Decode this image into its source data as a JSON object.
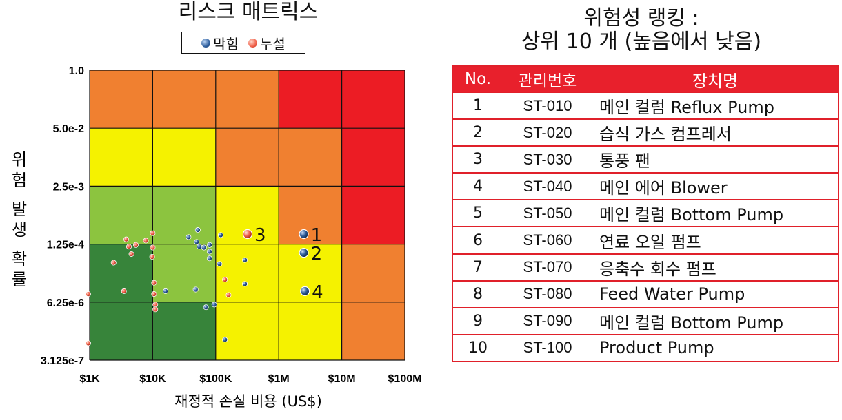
{
  "chart_data": {
    "type": "scatter",
    "title": "리스크 매트릭스",
    "xlabel": "재정적 손실 비용 (US$)",
    "ylabel": "위험 발생 확률",
    "x_scale": "log",
    "y_scale": "log",
    "xlim": [
      1000,
      100000000
    ],
    "ylim": [
      3.125e-07,
      1.0
    ],
    "x_ticks": [
      1000,
      10000,
      100000,
      1000000,
      10000000,
      100000000
    ],
    "x_tick_labels": [
      "$1K",
      "$10K",
      "$100K",
      "$1M",
      "$10M",
      "$100M"
    ],
    "y_ticks": [
      3.125e-07,
      6.25e-06,
      0.000125,
      0.0025,
      0.05,
      1.0
    ],
    "y_tick_labels": [
      "3.125e-7",
      "6.25e-6",
      "1.25e-4",
      "2.5e-3",
      "5.0e-2",
      "1.0"
    ],
    "grid": true,
    "legend_position": "top-center",
    "legend": [
      {
        "name": "막힘",
        "color": "#2f5f9e"
      },
      {
        "name": "누설",
        "color": "#f0604a"
      }
    ],
    "zone_colors": {
      "dark_green": "#37843a",
      "green": "#8cc43f",
      "yellow": "#f5f200",
      "orange": "#f08030",
      "red": "#ec1c24"
    },
    "zones": [
      [
        "orange",
        "orange",
        "orange",
        "red",
        "red"
      ],
      [
        "yellow",
        "yellow",
        "orange",
        "orange",
        "red"
      ],
      [
        "green",
        "green",
        "yellow",
        "orange",
        "red"
      ],
      [
        "dark_green",
        "green",
        "yellow",
        "yellow",
        "orange"
      ],
      [
        "dark_green",
        "dark_green",
        "yellow",
        "yellow",
        "orange"
      ]
    ],
    "series": [
      {
        "name": "막힘",
        "color": "#2f5f9e",
        "points": [
          {
            "x": 52000,
            "y": 0.00026
          },
          {
            "x": 37000,
            "y": 0.00018
          },
          {
            "x": 120000,
            "y": 0.0002
          },
          {
            "x": 50000,
            "y": 0.00014
          },
          {
            "x": 55000,
            "y": 0.00011
          },
          {
            "x": 65000,
            "y": 0.000105
          },
          {
            "x": 80000,
            "y": 0.00012
          },
          {
            "x": 80000,
            "y": 8.5e-05
          },
          {
            "x": 80000,
            "y": 6e-05
          },
          {
            "x": 115000,
            "y": 4.5e-05
          },
          {
            "x": 290000,
            "y": 5.5e-05
          },
          {
            "x": 290000,
            "y": 1.6e-05
          },
          {
            "x": 48000,
            "y": 1.2e-05
          },
          {
            "x": 16000,
            "y": 1.1e-05
          },
          {
            "x": 95000,
            "y": 5.5e-06
          },
          {
            "x": 70000,
            "y": 4.8e-06
          },
          {
            "x": 140000,
            "y": 9e-07
          },
          {
            "x": 2500000,
            "y": 0.00021,
            "label": "1"
          },
          {
            "x": 2500000,
            "y": 8e-05,
            "label": "2"
          },
          {
            "x": 2600000,
            "y": 1.1e-05,
            "label": "4"
          }
        ]
      },
      {
        "name": "누설",
        "color": "#f0604a",
        "points": [
          {
            "x": 10000,
            "y": 0.00022
          },
          {
            "x": 3800,
            "y": 0.00016
          },
          {
            "x": 4200,
            "y": 0.00011
          },
          {
            "x": 5400,
            "y": 0.00012
          },
          {
            "x": 7800,
            "y": 0.00015
          },
          {
            "x": 10000,
            "y": 0.000105
          },
          {
            "x": 2400,
            "y": 4.8e-05
          },
          {
            "x": 4600,
            "y": 7.5e-05
          },
          {
            "x": 9800,
            "y": 6.5e-05
          },
          {
            "x": 10500,
            "y": 1.7e-05
          },
          {
            "x": 3500,
            "y": 1.1e-05
          },
          {
            "x": 10500,
            "y": 9.5e-06
          },
          {
            "x": 11000,
            "y": 5.5e-06
          },
          {
            "x": 11000,
            "y": 4.3e-06
          },
          {
            "x": 950,
            "y": 9.5e-06
          },
          {
            "x": 950,
            "y": 7.5e-07
          },
          {
            "x": 140000,
            "y": 2e-05
          },
          {
            "x": 160000,
            "y": 9e-06
          },
          {
            "x": 320000,
            "y": 0.00021,
            "label": "3"
          }
        ]
      }
    ]
  },
  "ranking": {
    "title_line1": "위험성 랭킹 :",
    "title_line2": "상위 10 개 (높음에서 낮음)",
    "headers": {
      "no": "No.",
      "id": "관리번호",
      "name": "장치명"
    },
    "rows": [
      {
        "no": "1",
        "id": "ST-010",
        "name": "메인 컬럼 Reflux Pump"
      },
      {
        "no": "2",
        "id": "ST-020",
        "name": "습식 가스 컴프레서"
      },
      {
        "no": "3",
        "id": "ST-030",
        "name": "통풍 팬"
      },
      {
        "no": "4",
        "id": "ST-040",
        "name": "메인 에어 Blower"
      },
      {
        "no": "5",
        "id": "ST-050",
        "name": "메인 컬럼 Bottom Pump"
      },
      {
        "no": "6",
        "id": "ST-060",
        "name": "연료 오일 펌프"
      },
      {
        "no": "7",
        "id": "ST-070",
        "name": "응축수 회수 펌프"
      },
      {
        "no": "8",
        "id": "ST-080",
        "name": "Feed Water Pump"
      },
      {
        "no": "9",
        "id": "ST-090",
        "name": "메인 컬럼 Bottom Pump"
      },
      {
        "no": "10",
        "id": "ST-100",
        "name": "Product Pump"
      }
    ]
  }
}
